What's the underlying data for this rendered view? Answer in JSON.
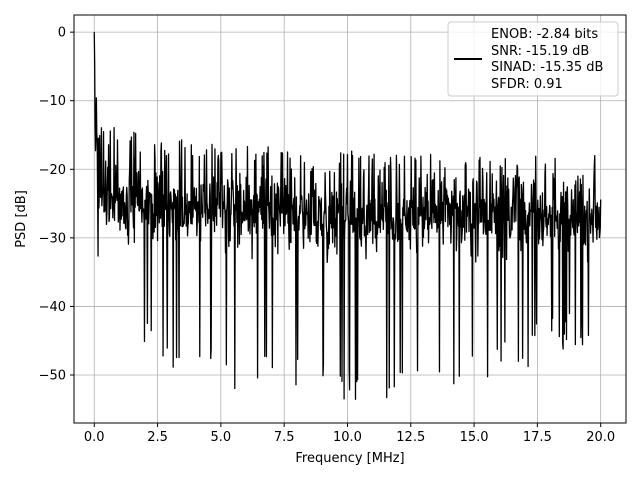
{
  "chart_data": {
    "type": "line",
    "title": "",
    "xlabel": "Frequency [MHz]",
    "ylabel": "PSD [dB]",
    "xlim": [
      -0.8,
      21.0
    ],
    "ylim": [
      -57,
      2.5
    ],
    "x_ticks": [
      0.0,
      2.5,
      5.0,
      7.5,
      10.0,
      12.5,
      15.0,
      17.5,
      20.0
    ],
    "x_tick_labels": [
      "0.0",
      "2.5",
      "5.0",
      "7.5",
      "10.0",
      "12.5",
      "15.0",
      "17.5",
      "20.0"
    ],
    "y_ticks": [
      0,
      -10,
      -20,
      -30,
      -40,
      -50
    ],
    "y_tick_labels": [
      "0",
      "−10",
      "−20",
      "−30",
      "−40",
      "−50"
    ],
    "grid": true,
    "legend_position": "top-right",
    "legend_lines": [
      "ENOB: -2.84 bits",
      "SNR: -15.19 dB",
      "SINAD: -15.35 dB",
      "SFDR: 0.91"
    ],
    "line_color": "#000000",
    "series": [
      {
        "x_range": [
          0.0,
          20.0
        ],
        "points": 1200,
        "peak": {
          "x": 0.0,
          "y": 0.0
        },
        "envelope": {
          "x": [
            0.0,
            0.2,
            0.5,
            1.0,
            2.0,
            5.0,
            10.0,
            15.0,
            20.0
          ],
          "upper": [
            -10,
            -12,
            -13,
            -14,
            -15,
            -16,
            -17,
            -18,
            -18
          ],
          "mean": [
            -18,
            -22,
            -24,
            -25,
            -25,
            -26,
            -27,
            -27,
            -27
          ],
          "lower": [
            -28,
            -38,
            -44,
            -45,
            -48,
            -52,
            -54,
            -52,
            -45
          ]
        }
      }
    ]
  }
}
